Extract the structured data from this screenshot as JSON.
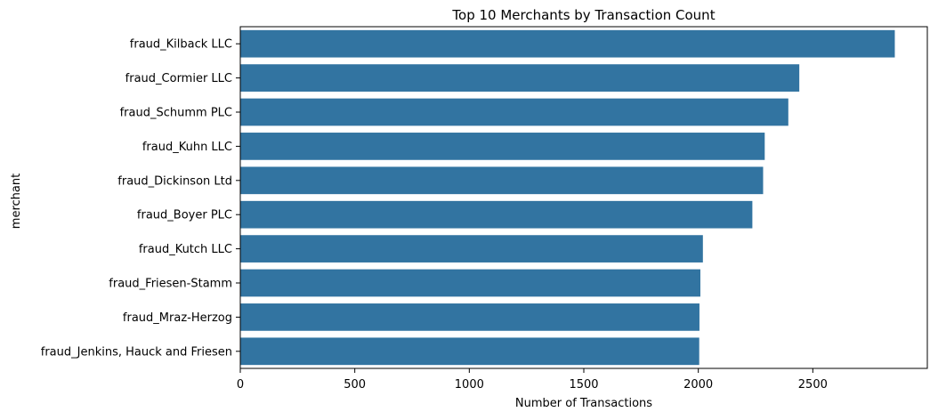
{
  "chart_data": {
    "type": "bar",
    "orientation": "horizontal",
    "title": "Top 10 Merchants by Transaction Count",
    "xlabel": "Number of Transactions",
    "ylabel": "merchant",
    "categories": [
      "fraud_Kilback LLC",
      "fraud_Cormier LLC",
      "fraud_Schumm PLC",
      "fraud_Kuhn LLC",
      "fraud_Dickinson Ltd",
      "fraud_Boyer PLC",
      "fraud_Kutch LLC",
      "fraud_Friesen-Stamm",
      "fraud_Mraz-Herzog",
      "fraud_Jenkins, Hauck and Friesen"
    ],
    "values": [
      2858,
      2441,
      2393,
      2290,
      2283,
      2236,
      2020,
      2009,
      2005,
      2004
    ],
    "xlim": [
      0,
      3000
    ],
    "xticks": [
      0,
      500,
      1000,
      1500,
      2000,
      2500
    ],
    "grid": false,
    "bar_color": "#3274a1",
    "axis_color": "#000000"
  }
}
